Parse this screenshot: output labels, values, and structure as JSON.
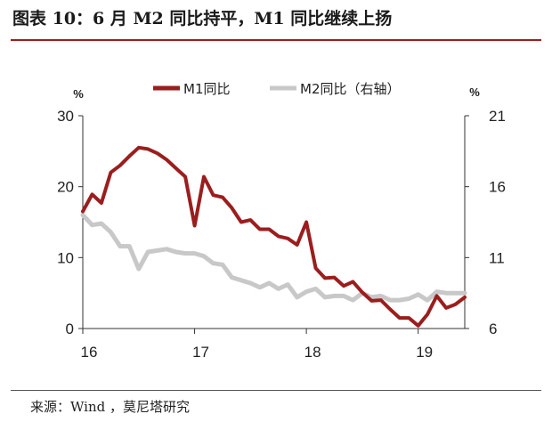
{
  "header": {
    "title": "图表 10：6 月 M2 同比持平，M1 同比继续上扬"
  },
  "footer": {
    "source": "来源：Wind ，莫尼塔研究"
  },
  "chart_data": {
    "type": "line",
    "title": "图表 10：6 月 M2 同比持平，M1 同比继续上扬",
    "x_ticks": [
      "16",
      "17",
      "18",
      "19"
    ],
    "x_range": [
      "2016-01",
      "2019-06"
    ],
    "left_axis": {
      "unit": "%",
      "ylim": [
        0,
        30
      ],
      "ticks": [
        "0",
        "10",
        "20",
        "30"
      ]
    },
    "right_axis": {
      "unit": "%",
      "ylim": [
        6,
        21
      ],
      "ticks": [
        "6",
        "11",
        "16",
        "21"
      ]
    },
    "grid": false,
    "legend_position": "top",
    "series": [
      {
        "name": "M1同比",
        "axis": "left",
        "color": "#9a1e1e",
        "x": [
          "2016-01",
          "2016-02",
          "2016-03",
          "2016-04",
          "2016-05",
          "2016-06",
          "2016-07",
          "2016-08",
          "2016-09",
          "2016-10",
          "2016-11",
          "2016-12",
          "2017-01",
          "2017-02",
          "2017-03",
          "2017-04",
          "2017-05",
          "2017-06",
          "2017-07",
          "2017-08",
          "2017-09",
          "2017-10",
          "2017-11",
          "2017-12",
          "2018-01",
          "2018-02",
          "2018-03",
          "2018-04",
          "2018-05",
          "2018-06",
          "2018-07",
          "2018-08",
          "2018-09",
          "2018-10",
          "2018-11",
          "2018-12",
          "2019-01",
          "2019-02",
          "2019-03",
          "2019-04",
          "2019-05",
          "2019-06"
        ],
        "values": [
          16.5,
          18.9,
          17.7,
          22.0,
          23.0,
          24.3,
          25.5,
          25.3,
          24.7,
          23.8,
          22.6,
          21.4,
          14.5,
          21.4,
          18.8,
          18.5,
          17.0,
          15.0,
          15.3,
          14.0,
          14.0,
          13.0,
          12.7,
          11.8,
          15.0,
          8.5,
          7.1,
          7.2,
          6.0,
          6.6,
          5.1,
          3.9,
          4.0,
          2.7,
          1.5,
          1.5,
          0.4,
          2.0,
          4.6,
          2.9,
          3.4,
          4.4
        ]
      },
      {
        "name": "M2同比（右轴）",
        "axis": "right",
        "color": "#c8c8c8",
        "x": [
          "2016-01",
          "2016-02",
          "2016-03",
          "2016-04",
          "2016-05",
          "2016-06",
          "2016-07",
          "2016-08",
          "2016-09",
          "2016-10",
          "2016-11",
          "2016-12",
          "2017-01",
          "2017-02",
          "2017-03",
          "2017-04",
          "2017-05",
          "2017-06",
          "2017-07",
          "2017-08",
          "2017-09",
          "2017-10",
          "2017-11",
          "2017-12",
          "2018-01",
          "2018-02",
          "2018-03",
          "2018-04",
          "2018-05",
          "2018-06",
          "2018-07",
          "2018-08",
          "2018-09",
          "2018-10",
          "2018-11",
          "2018-12",
          "2019-01",
          "2019-02",
          "2019-03",
          "2019-04",
          "2019-05",
          "2019-06"
        ],
        "values": [
          14.0,
          13.3,
          13.4,
          12.8,
          11.8,
          11.8,
          10.2,
          11.4,
          11.5,
          11.6,
          11.4,
          11.3,
          11.3,
          11.1,
          10.6,
          10.5,
          9.6,
          9.4,
          9.2,
          8.9,
          9.2,
          8.8,
          9.1,
          8.2,
          8.6,
          8.8,
          8.2,
          8.3,
          8.3,
          8.0,
          8.5,
          8.2,
          8.3,
          8.0,
          8.0,
          8.1,
          8.4,
          8.0,
          8.6,
          8.5,
          8.5,
          8.5
        ]
      }
    ]
  }
}
